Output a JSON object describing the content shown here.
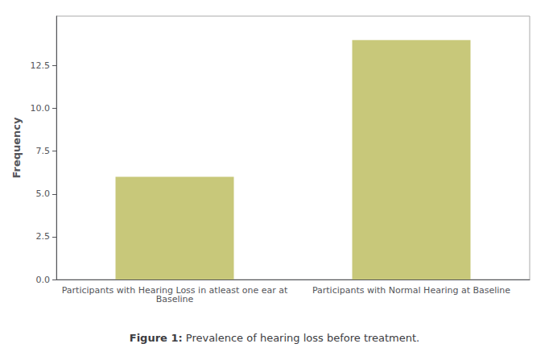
{
  "chart_data": {
    "type": "bar",
    "title": "Figure 1: Prevalence of hearing loss before treatment.",
    "ylabel": "Frequency",
    "categories": [
      "Participants with Hearing Loss in atleast one ear at\nBaseline",
      "Participants with Normal Hearing at Baseline"
    ],
    "values": [
      6,
      14
    ],
    "color": "#c8c87a",
    "ylim": [
      0,
      15.4
    ],
    "yticks": [
      {
        "value": 0.0,
        "label": "0.0"
      },
      2.5,
      {
        "value": 5.0,
        "label": "5.0"
      },
      7.5,
      {
        "value": 10.0,
        "label": "10.0"
      },
      12.5
    ],
    "grid": false
  }
}
